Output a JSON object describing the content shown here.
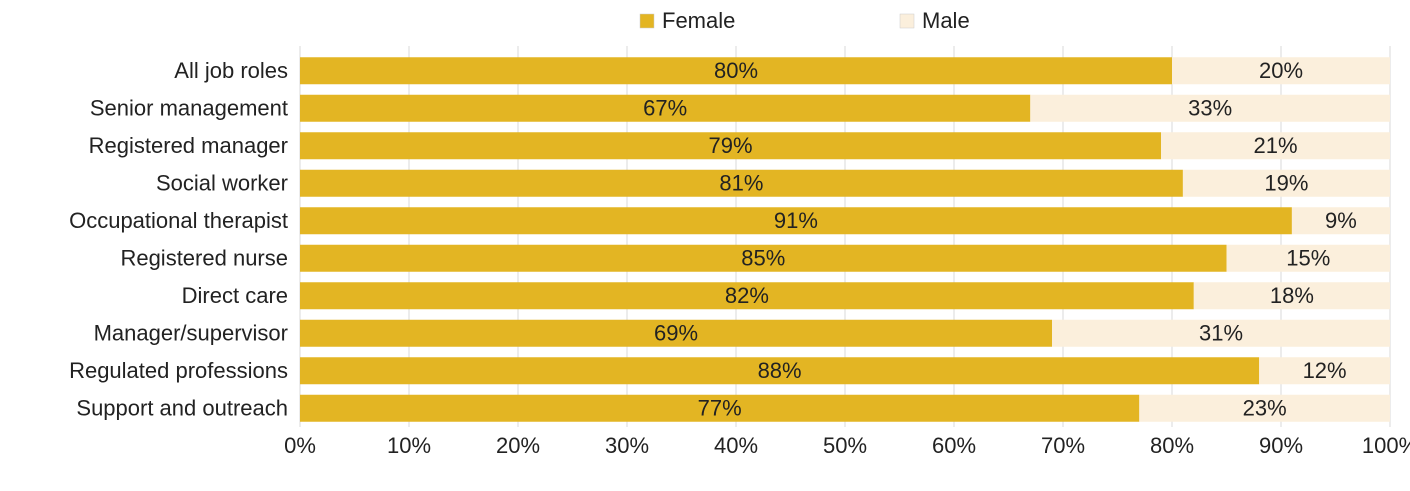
{
  "chart_data": {
    "type": "bar",
    "orientation": "horizontal",
    "stacked": true,
    "percent": true,
    "categories": [
      "All job roles",
      "Senior management",
      "Registered manager",
      "Social worker",
      "Occupational therapist",
      "Registered nurse",
      "Direct care",
      "Manager/supervisor",
      "Regulated professions",
      "Support and outreach"
    ],
    "series": [
      {
        "name": "Female",
        "values": [
          80,
          67,
          79,
          81,
          91,
          85,
          82,
          69,
          88,
          77
        ]
      },
      {
        "name": "Male",
        "values": [
          20,
          33,
          21,
          19,
          9,
          15,
          18,
          31,
          12,
          23
        ]
      }
    ],
    "value_labels": {
      "Female": [
        "80%",
        "67%",
        "79%",
        "81%",
        "91%",
        "85%",
        "82%",
        "69%",
        "88%",
        "77%"
      ],
      "Male": [
        "20%",
        "33%",
        "21%",
        "19%",
        "9%",
        "15%",
        "18%",
        "31%",
        "12%",
        "23%"
      ]
    },
    "xlim": [
      0,
      100
    ],
    "x_ticks": [
      "0%",
      "10%",
      "20%",
      "30%",
      "40%",
      "50%",
      "60%",
      "70%",
      "80%",
      "90%",
      "100%"
    ],
    "legend_position": "top",
    "colors": {
      "Female": "#E3B523",
      "Male": "#FBEFDC"
    }
  }
}
